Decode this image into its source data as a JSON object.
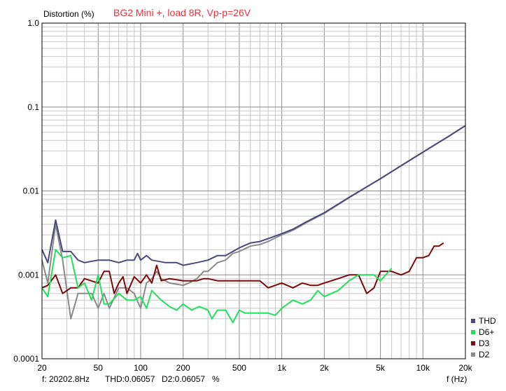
{
  "chart_data": {
    "type": "line",
    "title": "BG2 Mini +, load 8R, Vp-p=26V",
    "ylabel": "Distortion (%)",
    "xlabel": "f (Hz)",
    "xscale": "log",
    "yscale": "log",
    "xlim": [
      20,
      20000
    ],
    "ylim": [
      0.0001,
      1.0
    ],
    "grid": true,
    "legend_position": "bottom-right",
    "x_ticks": [
      {
        "value": 20,
        "label": "20"
      },
      {
        "value": 50,
        "label": "50"
      },
      {
        "value": 100,
        "label": "100"
      },
      {
        "value": 200,
        "label": "200"
      },
      {
        "value": 500,
        "label": "500"
      },
      {
        "value": 1000,
        "label": "1k"
      },
      {
        "value": 2000,
        "label": "2k"
      },
      {
        "value": 5000,
        "label": "5k"
      },
      {
        "value": 10000,
        "label": "10k"
      },
      {
        "value": 20000,
        "label": "20k"
      }
    ],
    "y_ticks": [
      {
        "value": 1.0,
        "label": "1.0"
      },
      {
        "value": 0.1,
        "label": "0.1"
      },
      {
        "value": 0.01,
        "label": "0.01"
      },
      {
        "value": 0.001,
        "label": "0.001"
      },
      {
        "value": 0.0001,
        "label": "0.0001"
      }
    ],
    "series": [
      {
        "name": "THD",
        "color": "#4a4a7a",
        "points": [
          [
            20,
            0.002
          ],
          [
            22,
            0.0014
          ],
          [
            25,
            0.0045
          ],
          [
            28,
            0.0019
          ],
          [
            32,
            0.0019
          ],
          [
            36,
            0.0015
          ],
          [
            40,
            0.0014
          ],
          [
            50,
            0.0015
          ],
          [
            60,
            0.0015
          ],
          [
            70,
            0.0014
          ],
          [
            80,
            0.0015
          ],
          [
            90,
            0.0015
          ],
          [
            95,
            0.0018
          ],
          [
            100,
            0.0015
          ],
          [
            110,
            0.0017
          ],
          [
            120,
            0.0015
          ],
          [
            150,
            0.0014
          ],
          [
            180,
            0.0014
          ],
          [
            200,
            0.0013
          ],
          [
            250,
            0.0014
          ],
          [
            300,
            0.0015
          ],
          [
            350,
            0.0017
          ],
          [
            400,
            0.0017
          ],
          [
            450,
            0.0019
          ],
          [
            500,
            0.0021
          ],
          [
            600,
            0.0024
          ],
          [
            700,
            0.0025
          ],
          [
            800,
            0.0027
          ],
          [
            1000,
            0.0031
          ],
          [
            1200,
            0.0035
          ],
          [
            1500,
            0.0043
          ],
          [
            2000,
            0.0055
          ],
          [
            3000,
            0.0084
          ],
          [
            5000,
            0.014
          ],
          [
            7000,
            0.02
          ],
          [
            10000,
            0.029
          ],
          [
            15000,
            0.044
          ],
          [
            20000,
            0.06
          ]
        ]
      },
      {
        "name": "D6+",
        "color": "#22e05a",
        "points": [
          [
            20,
            0.0007
          ],
          [
            22,
            0.00055
          ],
          [
            25,
            0.002
          ],
          [
            28,
            0.0016
          ],
          [
            32,
            0.0017
          ],
          [
            36,
            0.0007
          ],
          [
            40,
            0.0008
          ],
          [
            45,
            0.0005
          ],
          [
            50,
            0.001
          ],
          [
            55,
            0.00045
          ],
          [
            60,
            0.00045
          ],
          [
            70,
            0.0006
          ],
          [
            80,
            0.0005
          ],
          [
            90,
            0.0005
          ],
          [
            100,
            0.00055
          ],
          [
            110,
            0.0004
          ],
          [
            120,
            0.00065
          ],
          [
            140,
            0.0005
          ],
          [
            160,
            0.00042
          ],
          [
            180,
            0.00038
          ],
          [
            200,
            0.00045
          ],
          [
            230,
            0.00038
          ],
          [
            260,
            0.00042
          ],
          [
            300,
            0.00038
          ],
          [
            320,
            0.0003
          ],
          [
            350,
            0.00038
          ],
          [
            400,
            0.00038
          ],
          [
            450,
            0.00027
          ],
          [
            500,
            0.00038
          ],
          [
            550,
            0.00035
          ],
          [
            600,
            0.00035
          ],
          [
            700,
            0.00035
          ],
          [
            800,
            0.00035
          ],
          [
            900,
            0.00033
          ],
          [
            1000,
            0.0004
          ],
          [
            1200,
            0.0005
          ],
          [
            1400,
            0.00045
          ],
          [
            1600,
            0.0005
          ],
          [
            1800,
            0.00065
          ],
          [
            2000,
            0.00055
          ],
          [
            2500,
            0.00065
          ],
          [
            3000,
            0.00085
          ],
          [
            3500,
            0.001
          ],
          [
            4000,
            0.001
          ],
          [
            4500,
            0.001
          ],
          [
            5000,
            0.00085
          ],
          [
            6000,
            0.0012
          ]
        ]
      },
      {
        "name": "D3",
        "color": "#7a0a0a",
        "points": [
          [
            20,
            0.0007
          ],
          [
            22,
            0.00075
          ],
          [
            25,
            0.001
          ],
          [
            28,
            0.0006
          ],
          [
            32,
            0.0007
          ],
          [
            36,
            0.0007
          ],
          [
            40,
            0.0009
          ],
          [
            50,
            0.0008
          ],
          [
            55,
            0.0011
          ],
          [
            60,
            0.0011
          ],
          [
            65,
            0.0006
          ],
          [
            70,
            0.0008
          ],
          [
            75,
            0.00095
          ],
          [
            80,
            0.0006
          ],
          [
            90,
            0.00095
          ],
          [
            100,
            0.0008
          ],
          [
            110,
            0.001
          ],
          [
            120,
            0.0008
          ],
          [
            130,
            0.0013
          ],
          [
            140,
            0.00085
          ],
          [
            160,
            0.0009
          ],
          [
            200,
            0.00085
          ],
          [
            250,
            0.00085
          ],
          [
            280,
            0.0009
          ],
          [
            300,
            0.0009
          ],
          [
            350,
            0.00085
          ],
          [
            400,
            0.00085
          ],
          [
            500,
            0.00085
          ],
          [
            600,
            0.00085
          ],
          [
            700,
            0.00085
          ],
          [
            800,
            0.0007
          ],
          [
            900,
            0.00075
          ],
          [
            1000,
            0.0008
          ],
          [
            1200,
            0.0007
          ],
          [
            1400,
            0.0008
          ],
          [
            1600,
            0.00075
          ],
          [
            1800,
            0.00075
          ],
          [
            2000,
            0.0008
          ],
          [
            2500,
            0.0009
          ],
          [
            3000,
            0.001
          ],
          [
            3500,
            0.001
          ],
          [
            4000,
            0.0006
          ],
          [
            4500,
            0.0007
          ],
          [
            5000,
            0.0011
          ],
          [
            6000,
            0.0011
          ],
          [
            7000,
            0.001
          ],
          [
            8000,
            0.0011
          ],
          [
            9000,
            0.0016
          ],
          [
            10000,
            0.0016
          ],
          [
            11000,
            0.0017
          ],
          [
            12000,
            0.0022
          ],
          [
            13000,
            0.0022
          ],
          [
            14000,
            0.0024
          ]
        ]
      },
      {
        "name": "D2",
        "color": "#8a8a8a",
        "points": [
          [
            20,
            0.0015
          ],
          [
            22,
            0.0008
          ],
          [
            25,
            0.004
          ],
          [
            28,
            0.0015
          ],
          [
            32,
            0.0003
          ],
          [
            36,
            0.0006
          ],
          [
            40,
            0.0006
          ],
          [
            45,
            0.0006
          ],
          [
            50,
            0.0004
          ],
          [
            55,
            0.0006
          ],
          [
            60,
            0.0004
          ],
          [
            70,
            0.0007
          ],
          [
            80,
            0.0007
          ],
          [
            90,
            0.0006
          ],
          [
            100,
            0.0004
          ],
          [
            110,
            0.0008
          ],
          [
            120,
            0.0009
          ],
          [
            130,
            0.0011
          ],
          [
            140,
            0.0009
          ],
          [
            160,
            0.0008
          ],
          [
            200,
            0.00075
          ],
          [
            220,
            0.0008
          ],
          [
            250,
            0.0009
          ],
          [
            280,
            0.0011
          ],
          [
            300,
            0.0011
          ],
          [
            350,
            0.0014
          ],
          [
            400,
            0.0015
          ],
          [
            450,
            0.0018
          ],
          [
            500,
            0.0019
          ],
          [
            600,
            0.0022
          ],
          [
            700,
            0.0023
          ],
          [
            800,
            0.0025
          ],
          [
            1000,
            0.003
          ],
          [
            1200,
            0.0034
          ],
          [
            1500,
            0.0042
          ],
          [
            2000,
            0.0054
          ],
          [
            3000,
            0.0083
          ],
          [
            5000,
            0.014
          ],
          [
            7000,
            0.02
          ],
          [
            10000,
            0.029
          ],
          [
            15000,
            0.044
          ],
          [
            20000,
            0.06
          ]
        ]
      }
    ]
  },
  "status_bar": {
    "frequency": "f: 20202.8Hz",
    "thd": "THD:0.06057",
    "d2": "D2:0.06057",
    "unit": "%"
  }
}
